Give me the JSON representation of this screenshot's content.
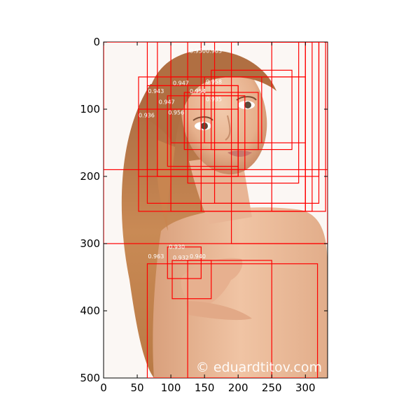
{
  "axes": {
    "x_ticks": [
      0,
      50,
      100,
      150,
      200,
      250,
      300
    ],
    "y_ticks": [
      0,
      100,
      200,
      300,
      400,
      500
    ],
    "xlim": [
      0,
      333
    ],
    "ylim": [
      0,
      500
    ],
    "y_inverted": true
  },
  "photo": {
    "subject": "portrait of a woman with long wavy auburn hair, hand resting on shoulder, white studio background"
  },
  "watermark": "© eduardtitov.com",
  "box_color": "#ff0000",
  "boxes": [
    {
      "x1": 0,
      "y1": 0,
      "x2": 333,
      "y2": 300
    },
    {
      "x1": 0,
      "y1": 0,
      "x2": 333,
      "y2": 190
    },
    {
      "x1": 65,
      "y1": 0,
      "x2": 300,
      "y2": 240
    },
    {
      "x1": 80,
      "y1": 0,
      "x2": 320,
      "y2": 200
    },
    {
      "x1": 100,
      "y1": 0,
      "x2": 310,
      "y2": 252
    },
    {
      "x1": 125,
      "y1": 0,
      "x2": 290,
      "y2": 210
    },
    {
      "x1": 145,
      "y1": 0,
      "x2": 300,
      "y2": 252
    },
    {
      "x1": 165,
      "y1": 0,
      "x2": 320,
      "y2": 240
    },
    {
      "x1": 190,
      "y1": 0,
      "x2": 333,
      "y2": 300
    },
    {
      "x1": 250,
      "y1": 0,
      "x2": 330,
      "y2": 252
    },
    {
      "x1": 52,
      "y1": 52,
      "x2": 300,
      "y2": 252
    },
    {
      "x1": 65,
      "y1": 65,
      "x2": 200,
      "y2": 190
    },
    {
      "x1": 80,
      "y1": 65,
      "x2": 200,
      "y2": 200
    },
    {
      "x1": 95,
      "y1": 80,
      "x2": 200,
      "y2": 185
    },
    {
      "x1": 100,
      "y1": 52,
      "x2": 235,
      "y2": 150
    },
    {
      "x1": 160,
      "y1": 42,
      "x2": 280,
      "y2": 160
    },
    {
      "x1": 150,
      "y1": 52,
      "x2": 300,
      "y2": 150
    },
    {
      "x1": 145,
      "y1": 80,
      "x2": 210,
      "y2": 190
    },
    {
      "x1": 120,
      "y1": 75,
      "x2": 230,
      "y2": 160
    },
    {
      "x1": 52,
      "y1": 100,
      "x2": 200,
      "y2": 200
    },
    {
      "x1": 65,
      "y1": 330,
      "x2": 318,
      "y2": 500
    },
    {
      "x1": 95,
      "y1": 305,
      "x2": 145,
      "y2": 352
    },
    {
      "x1": 102,
      "y1": 325,
      "x2": 160,
      "y2": 382
    },
    {
      "x1": 125,
      "y1": 325,
      "x2": 250,
      "y2": 500
    }
  ],
  "score_labels": [
    {
      "text": "0.950",
      "x": 128,
      "y": 16
    },
    {
      "text": "0.963",
      "x": 152,
      "y": 16
    },
    {
      "text": "0.958",
      "x": 152,
      "y": 62
    },
    {
      "text": "0.947",
      "x": 103,
      "y": 64
    },
    {
      "text": "0.943",
      "x": 66,
      "y": 76
    },
    {
      "text": "0.954",
      "x": 128,
      "y": 76
    },
    {
      "text": "0.947",
      "x": 82,
      "y": 92
    },
    {
      "text": "0.935",
      "x": 152,
      "y": 88
    },
    {
      "text": "0.956",
      "x": 96,
      "y": 108
    },
    {
      "text": "0.936",
      "x": 52,
      "y": 112
    },
    {
      "text": "0.930",
      "x": 97,
      "y": 308
    },
    {
      "text": "0.963",
      "x": 66,
      "y": 322
    },
    {
      "text": "0.932",
      "x": 103,
      "y": 324
    },
    {
      "text": "0.940",
      "x": 128,
      "y": 322
    }
  ]
}
